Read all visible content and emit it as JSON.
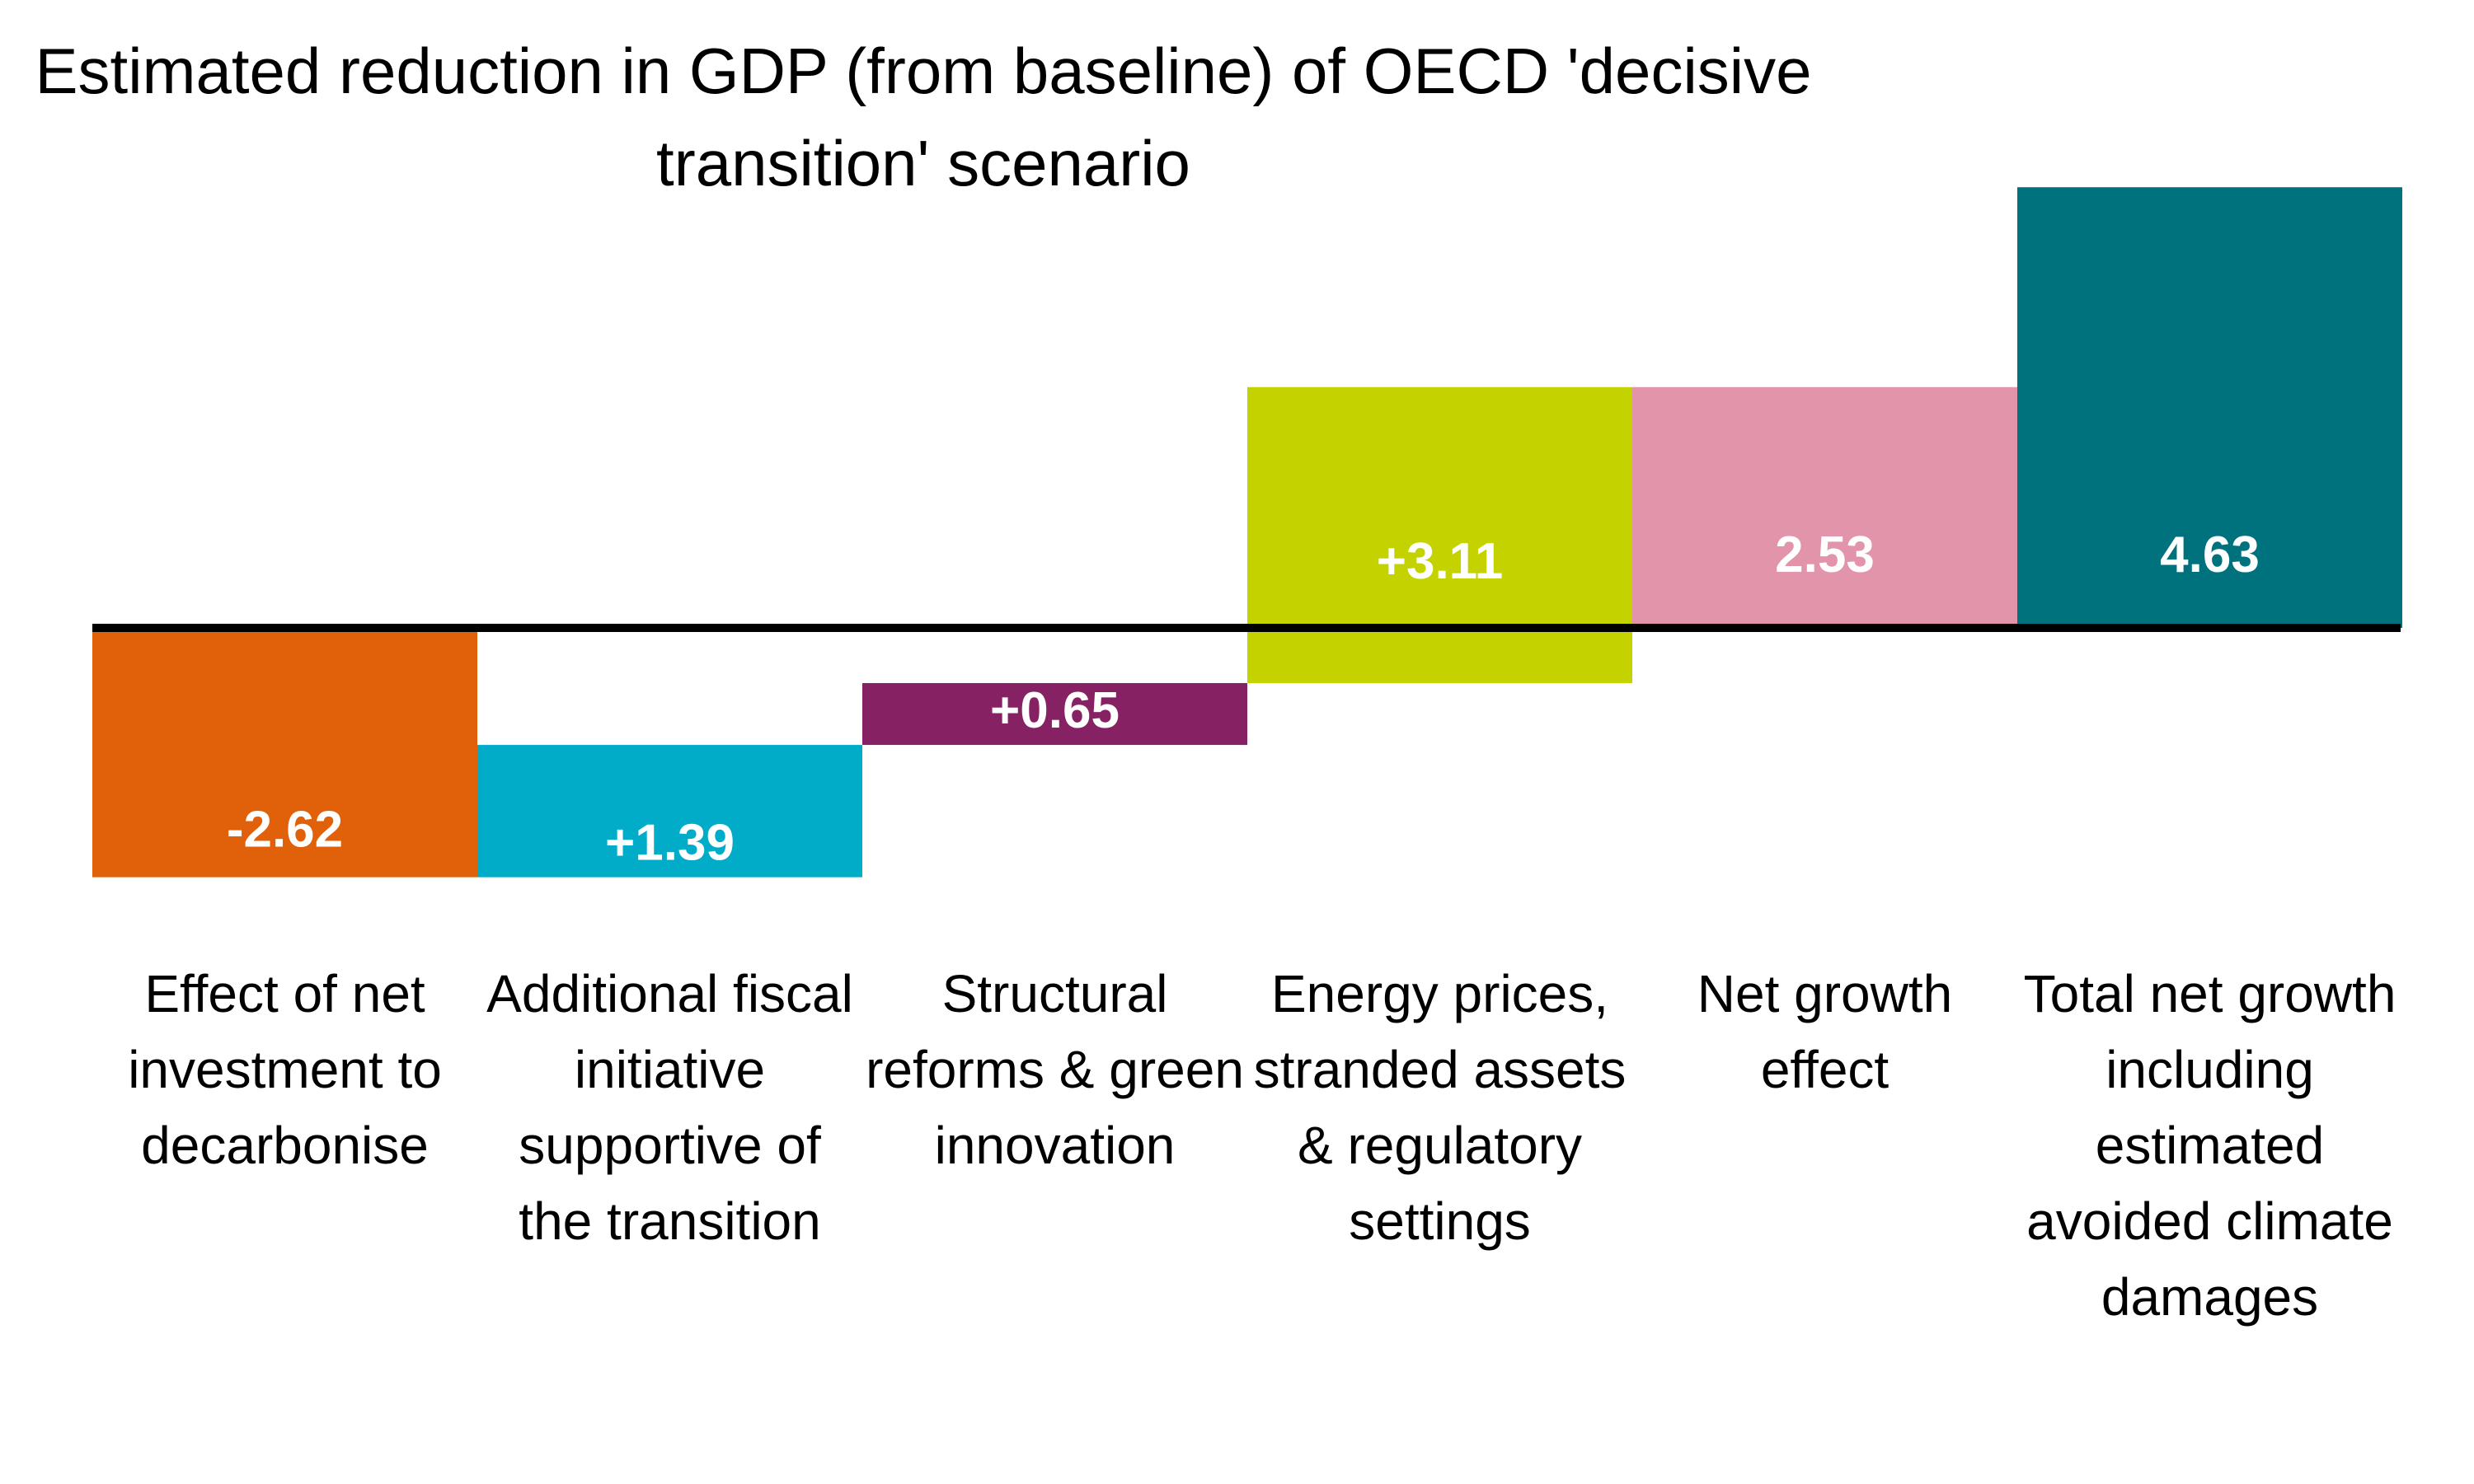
{
  "chart_data": {
    "type": "bar",
    "subtype": "waterfall",
    "title": "Estimated reduction in GDP (from baseline) of OECD 'decisive transition' scenario",
    "xlabel": "",
    "ylabel": "",
    "ylim": [
      -3,
      5
    ],
    "grid": false,
    "legend": "none",
    "categories": [
      "Effect of net investment to decarbonise",
      "Additional fiscal initiative supportive of the transition",
      "Structural reforms & green innovation",
      "Energy prices, stranded assets & regulatory settings",
      "Net growth effect",
      "Total net growth including estimated avoided climate damages"
    ],
    "values": [
      -2.62,
      1.39,
      0.65,
      3.11,
      2.53,
      4.63
    ],
    "value_labels": [
      "-2.62",
      "+1.39",
      "+0.65",
      "+3.11",
      "2.53",
      "4.63"
    ],
    "bar_kinds": [
      "delta",
      "delta",
      "delta",
      "delta",
      "total",
      "total"
    ],
    "colors": [
      "#E0610A",
      "#00ACC8",
      "#862164",
      "#C4D300",
      "#E194AA",
      "#00727E"
    ],
    "baseline_color": "#000000"
  }
}
